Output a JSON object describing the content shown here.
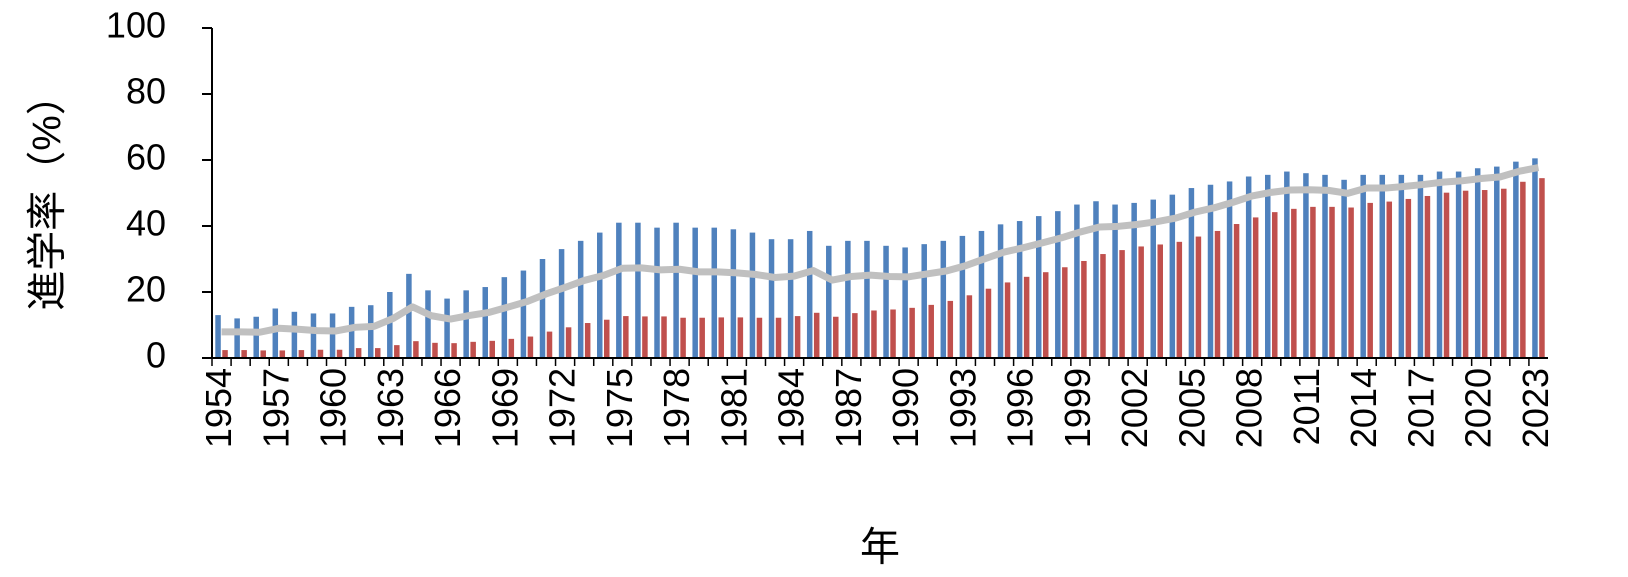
{
  "chart_data": {
    "type": "bar",
    "ylabel": "進学率（%）",
    "xlabel": "年",
    "categories": [
      "1954",
      null,
      null,
      "1957",
      null,
      null,
      "1960",
      null,
      null,
      "1963",
      null,
      null,
      "1966",
      null,
      null,
      "1969",
      null,
      null,
      "1972",
      null,
      null,
      "1975",
      null,
      null,
      "1978",
      null,
      null,
      "1981",
      null,
      null,
      "1984",
      null,
      null,
      "1987",
      null,
      null,
      "1990",
      null,
      null,
      "1993",
      null,
      null,
      "1996",
      null,
      null,
      "1999",
      null,
      null,
      "2002",
      null,
      null,
      "2005",
      null,
      null,
      "2008",
      null,
      null,
      "2011",
      null,
      null,
      "2014",
      null,
      null,
      "2017",
      null,
      null,
      "2020",
      null,
      null,
      "2023"
    ],
    "series": [
      {
        "color": "#4f81bd",
        "values": [
          13,
          12,
          12.5,
          15,
          14,
          13.5,
          13.5,
          15.5,
          16,
          20,
          25.5,
          20.5,
          18,
          20.5,
          21.5,
          24.5,
          26.5,
          30,
          33,
          35.5,
          38,
          41,
          41,
          39.5,
          41,
          39.5,
          39.5,
          39,
          38,
          36,
          36,
          38.5,
          34,
          35.5,
          35.5,
          34,
          33.5,
          34.5,
          35.5,
          37,
          38.5,
          40.5,
          41.5,
          43,
          44.5,
          46.5,
          47.5,
          46.5,
          47,
          48,
          49.5,
          51.5,
          52.5,
          53.5,
          55,
          55.5,
          56.5,
          56,
          55.5,
          54,
          55.5,
          55.5,
          55.5,
          55.5,
          56.5,
          56.5,
          57.5,
          58,
          59.5,
          60.5
        ]
      },
      {
        "color": "#c0504d",
        "values": [
          2.4,
          2.4,
          2.3,
          2.3,
          2.4,
          2.5,
          2.5,
          3,
          3,
          3.9,
          5.1,
          4.6,
          4.5,
          4.9,
          5.2,
          5.8,
          6.5,
          8,
          9.3,
          10.6,
          11.6,
          12.7,
          12.6,
          12.6,
          12.2,
          12.2,
          12.3,
          12.3,
          12.2,
          12.2,
          12.7,
          13.7,
          12.5,
          13.6,
          14.4,
          14.7,
          15.2,
          16.1,
          17.3,
          19,
          21,
          22.9,
          24.6,
          26,
          27.5,
          29.4,
          31.5,
          32.7,
          33.8,
          34.4,
          35.2,
          36.8,
          38.5,
          40.6,
          42.6,
          44.2,
          45.2,
          45.8,
          45.8,
          45.6,
          47,
          47.4,
          48.2,
          49.1,
          50.1,
          50.7,
          50.9,
          51.3,
          53.4,
          54.5
        ]
      },
      {
        "type": "line",
        "color": "#c0c0c0",
        "values": [
          7.9,
          7.9,
          7.8,
          9,
          8.7,
          8.3,
          8.2,
          9.3,
          9.6,
          12,
          15.5,
          12.8,
          11.8,
          12.9,
          13.8,
          15.4,
          17.1,
          19.4,
          21.4,
          23.5,
          25,
          27.2,
          27.3,
          26.7,
          26.9,
          26.1,
          26.1,
          25.8,
          25.3,
          24.4,
          24.8,
          26.5,
          23.6,
          24.7,
          25.1,
          24.7,
          24.6,
          25.5,
          26.4,
          28,
          30.1,
          32.1,
          33.4,
          34.9,
          36.4,
          38.2,
          39.7,
          39.9,
          40.5,
          41.3,
          42.4,
          44.2,
          45.5,
          47.2,
          49.1,
          50.2,
          50.9,
          51,
          50.8,
          49.9,
          51.5,
          51.5,
          52,
          52.6,
          53.3,
          53.7,
          54.4,
          54.9,
          56.6,
          57.7
        ]
      }
    ],
    "ylim": [
      0,
      100
    ],
    "yticks": [
      0,
      20,
      40,
      60,
      80,
      100
    ]
  }
}
